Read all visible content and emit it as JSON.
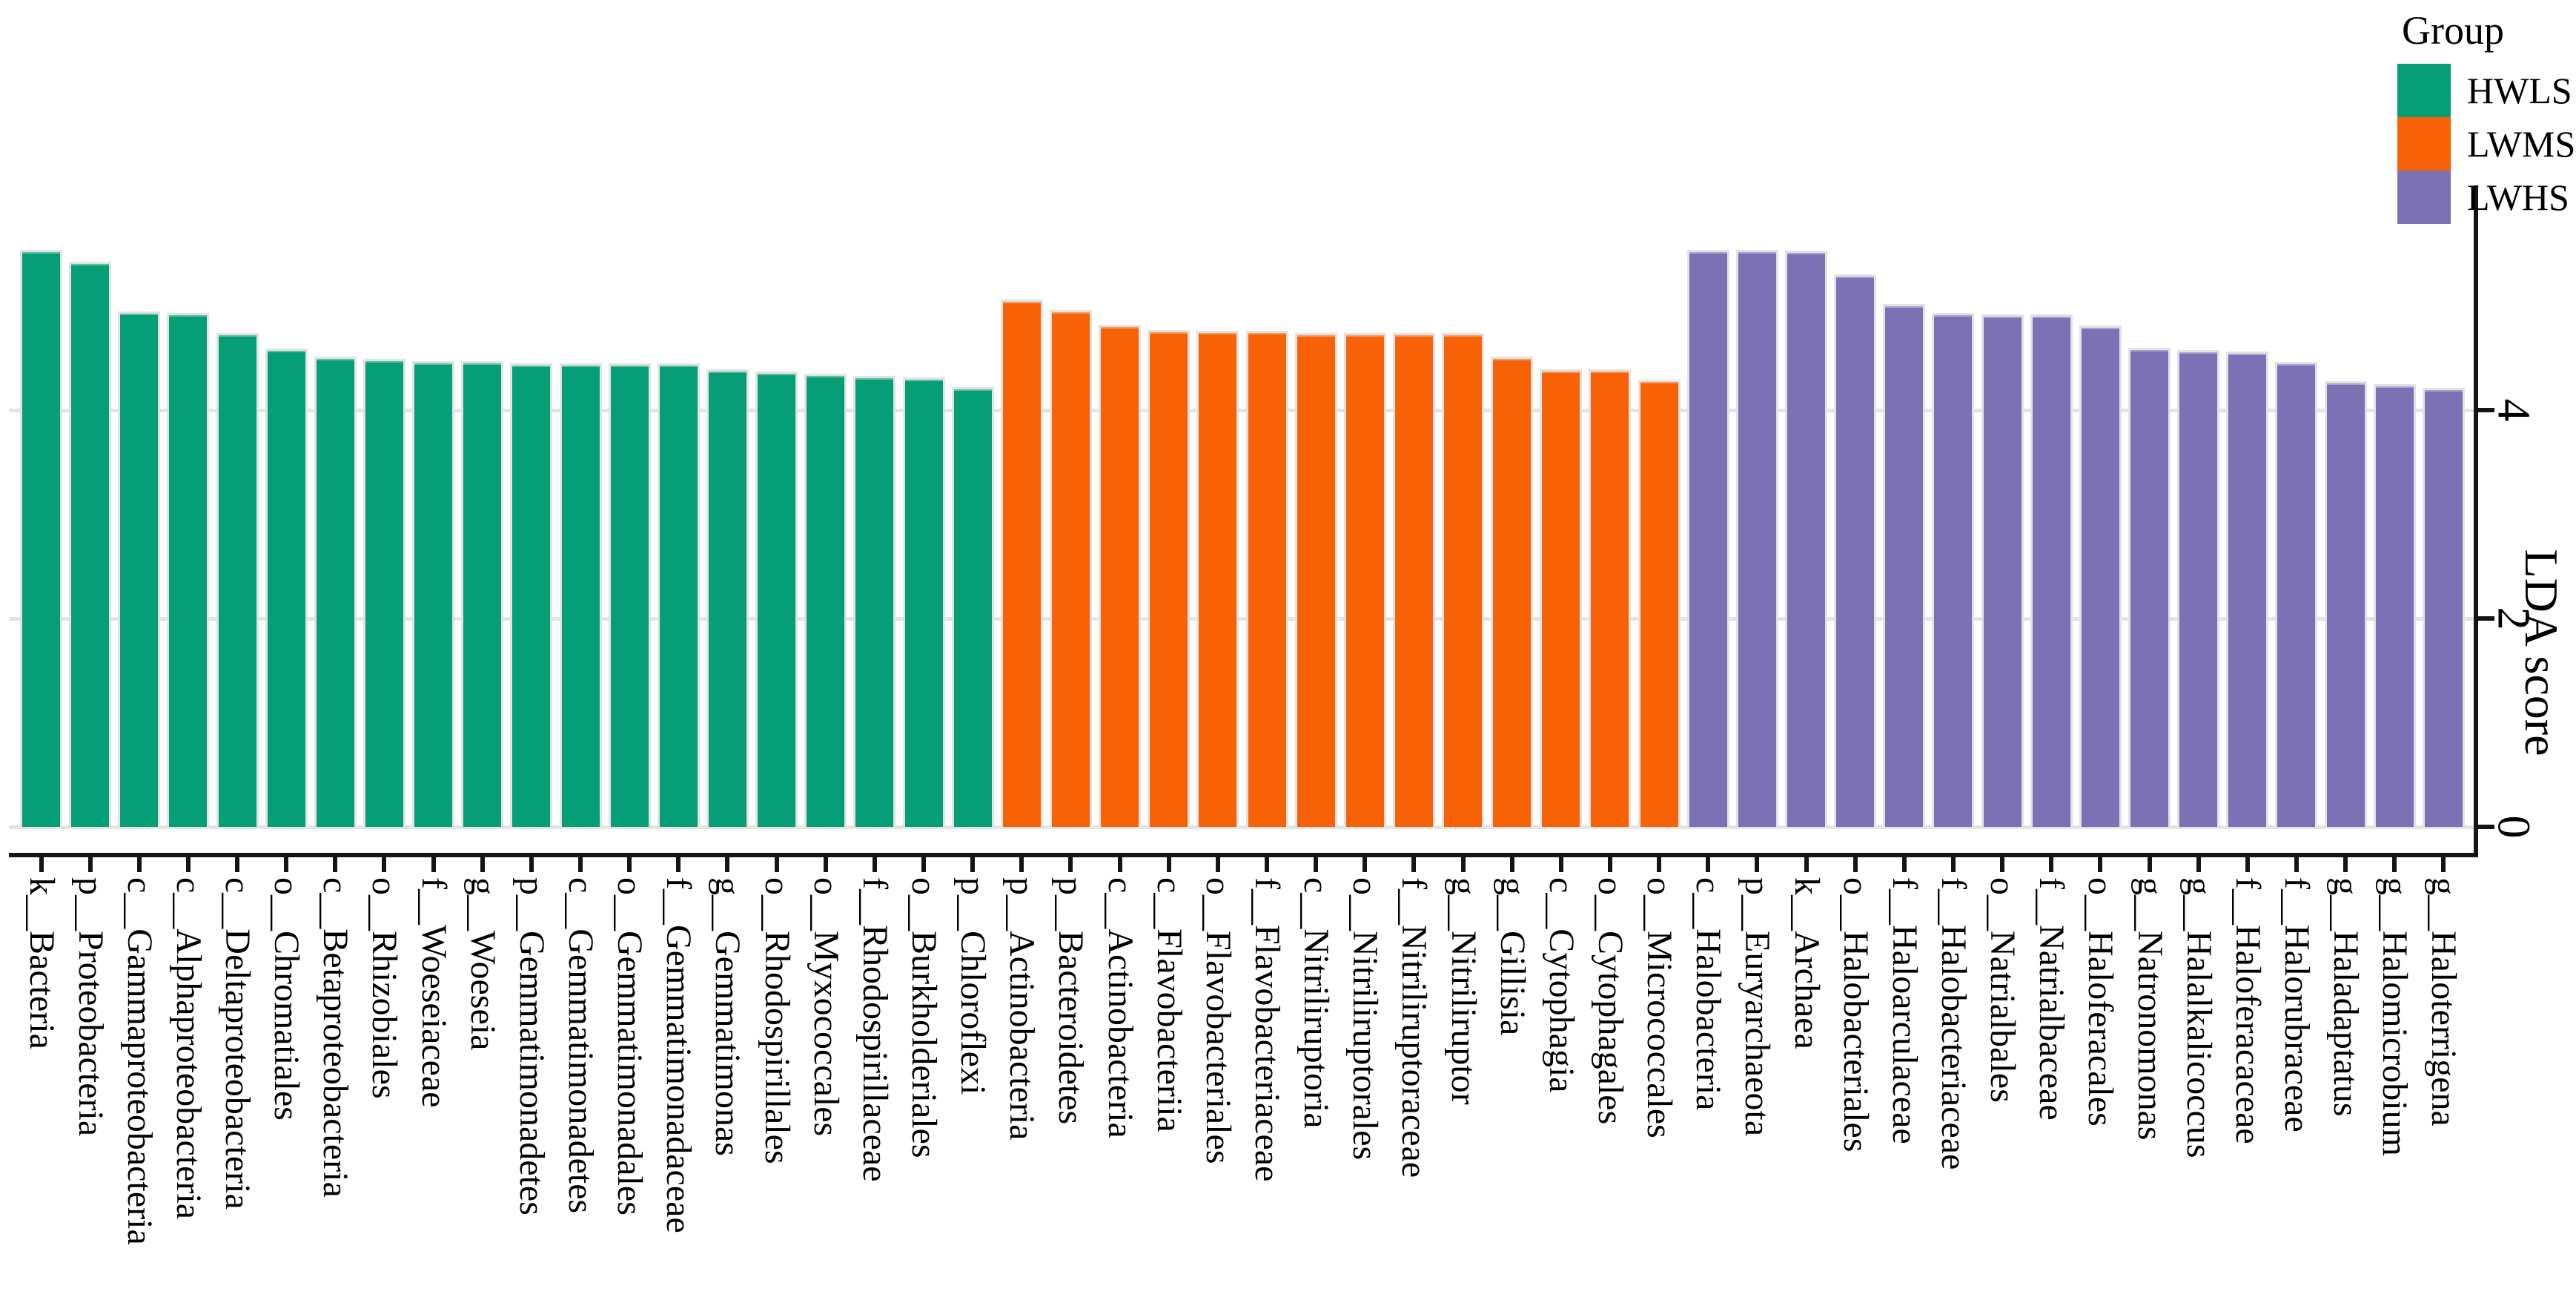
{
  "legend": {
    "title": "Group",
    "items": [
      {
        "label": "HWLS",
        "color": "#069E76"
      },
      {
        "label": "LWMS",
        "color": "#F66205"
      },
      {
        "label": "LWHS",
        "color": "#7C71B5"
      }
    ]
  },
  "chart_data": {
    "type": "bar",
    "title": "",
    "xlabel": "",
    "ylabel": "LDA score",
    "ylim": [
      0,
      6.2
    ],
    "yticks": [
      {
        "label": "0",
        "value": 0
      },
      {
        "label": "2",
        "value": 2
      },
      {
        "label": "4",
        "value": 4
      }
    ],
    "gridline_values": [
      0,
      2,
      4
    ],
    "grid": true,
    "legend_position": "top-right",
    "bar_orientation": "vertical",
    "x_tick_rotation_deg": 90,
    "bars": [
      {
        "label": "k__Bacteria",
        "group": "HWLS",
        "value": 5.54
      },
      {
        "label": "p__Proteobacteria",
        "group": "HWLS",
        "value": 5.42
      },
      {
        "label": "c__Gammaproteobacteria",
        "group": "HWLS",
        "value": 4.95
      },
      {
        "label": "c__Alphaproteobacteria",
        "group": "HWLS",
        "value": 4.93
      },
      {
        "label": "c__Deltaproteobacteria",
        "group": "HWLS",
        "value": 4.74
      },
      {
        "label": "o__Chromatiales",
        "group": "HWLS",
        "value": 4.59
      },
      {
        "label": "c__Betaproteobacteria",
        "group": "HWLS",
        "value": 4.51
      },
      {
        "label": "o__Rhizobiales",
        "group": "HWLS",
        "value": 4.49
      },
      {
        "label": "f__Woeseiaceae",
        "group": "HWLS",
        "value": 4.47
      },
      {
        "label": "g__Woeseia",
        "group": "HWLS",
        "value": 4.47
      },
      {
        "label": "p__Gemmatimonadetes",
        "group": "HWLS",
        "value": 4.45
      },
      {
        "label": "c__Gemmatimonadetes",
        "group": "HWLS",
        "value": 4.45
      },
      {
        "label": "o__Gemmatimonadales",
        "group": "HWLS",
        "value": 4.45
      },
      {
        "label": "f__Gemmatimonadaceae",
        "group": "HWLS",
        "value": 4.45
      },
      {
        "label": "g__Gemmatimonas",
        "group": "HWLS",
        "value": 4.39
      },
      {
        "label": "o__Rhodospirillales",
        "group": "HWLS",
        "value": 4.37
      },
      {
        "label": "o__Myxococcales",
        "group": "HWLS",
        "value": 4.35
      },
      {
        "label": "f__Rhodospirillaceae",
        "group": "HWLS",
        "value": 4.33
      },
      {
        "label": "o__Burkholderiales",
        "group": "HWLS",
        "value": 4.31
      },
      {
        "label": "p__Chloroflexi",
        "group": "HWLS",
        "value": 4.22
      },
      {
        "label": "p__Actinobacteria",
        "group": "LWMS",
        "value": 5.06
      },
      {
        "label": "p__Bacteroidetes",
        "group": "LWMS",
        "value": 4.96
      },
      {
        "label": "c__Actinobacteria",
        "group": "LWMS",
        "value": 4.82
      },
      {
        "label": "c__Flavobacteriia",
        "group": "LWMS",
        "value": 4.77
      },
      {
        "label": "o__Flavobacteriales",
        "group": "LWMS",
        "value": 4.76
      },
      {
        "label": "f__Flavobacteriaceae",
        "group": "LWMS",
        "value": 4.76
      },
      {
        "label": "c__Nitriliruptoria",
        "group": "LWMS",
        "value": 4.74
      },
      {
        "label": "o__Nitriliruptorales",
        "group": "LWMS",
        "value": 4.74
      },
      {
        "label": "f__Nitriliruptoraceae",
        "group": "LWMS",
        "value": 4.74
      },
      {
        "label": "g__Nitriliruptor",
        "group": "LWMS",
        "value": 4.74
      },
      {
        "label": "g__Gillisia",
        "group": "LWMS",
        "value": 4.51
      },
      {
        "label": "c__Cytophagia",
        "group": "LWMS",
        "value": 4.39
      },
      {
        "label": "o__Cytophagales",
        "group": "LWMS",
        "value": 4.39
      },
      {
        "label": "o__Micrococcales",
        "group": "LWMS",
        "value": 4.29
      },
      {
        "label": "c__Halobacteria",
        "group": "LWHS",
        "value": 5.54
      },
      {
        "label": "p__Euryarchaeota",
        "group": "LWHS",
        "value": 5.54
      },
      {
        "label": "k__Archaea",
        "group": "LWHS",
        "value": 5.53
      },
      {
        "label": "o__Halobacteriales",
        "group": "LWHS",
        "value": 5.3
      },
      {
        "label": "f__Haloarculaceae",
        "group": "LWHS",
        "value": 5.02
      },
      {
        "label": "f__Halobacteriaceae",
        "group": "LWHS",
        "value": 4.93
      },
      {
        "label": "o__Natrialbales",
        "group": "LWHS",
        "value": 4.92
      },
      {
        "label": "f__Natrialbaceae",
        "group": "LWHS",
        "value": 4.92
      },
      {
        "label": "o__Haloferacales",
        "group": "LWHS",
        "value": 4.81
      },
      {
        "label": "g__Natronomonas",
        "group": "LWHS",
        "value": 4.6
      },
      {
        "label": "g__Halalkalicoccus",
        "group": "LWHS",
        "value": 4.58
      },
      {
        "label": "f__Haloferacaceae",
        "group": "LWHS",
        "value": 4.56
      },
      {
        "label": "f__Halorubraceae",
        "group": "LWHS",
        "value": 4.46
      },
      {
        "label": "g__Haladaptatus",
        "group": "LWHS",
        "value": 4.28
      },
      {
        "label": "g__Halomicrobium",
        "group": "LWHS",
        "value": 4.25
      },
      {
        "label": "g__Haloterrigena",
        "group": "LWHS",
        "value": 4.21
      }
    ]
  }
}
